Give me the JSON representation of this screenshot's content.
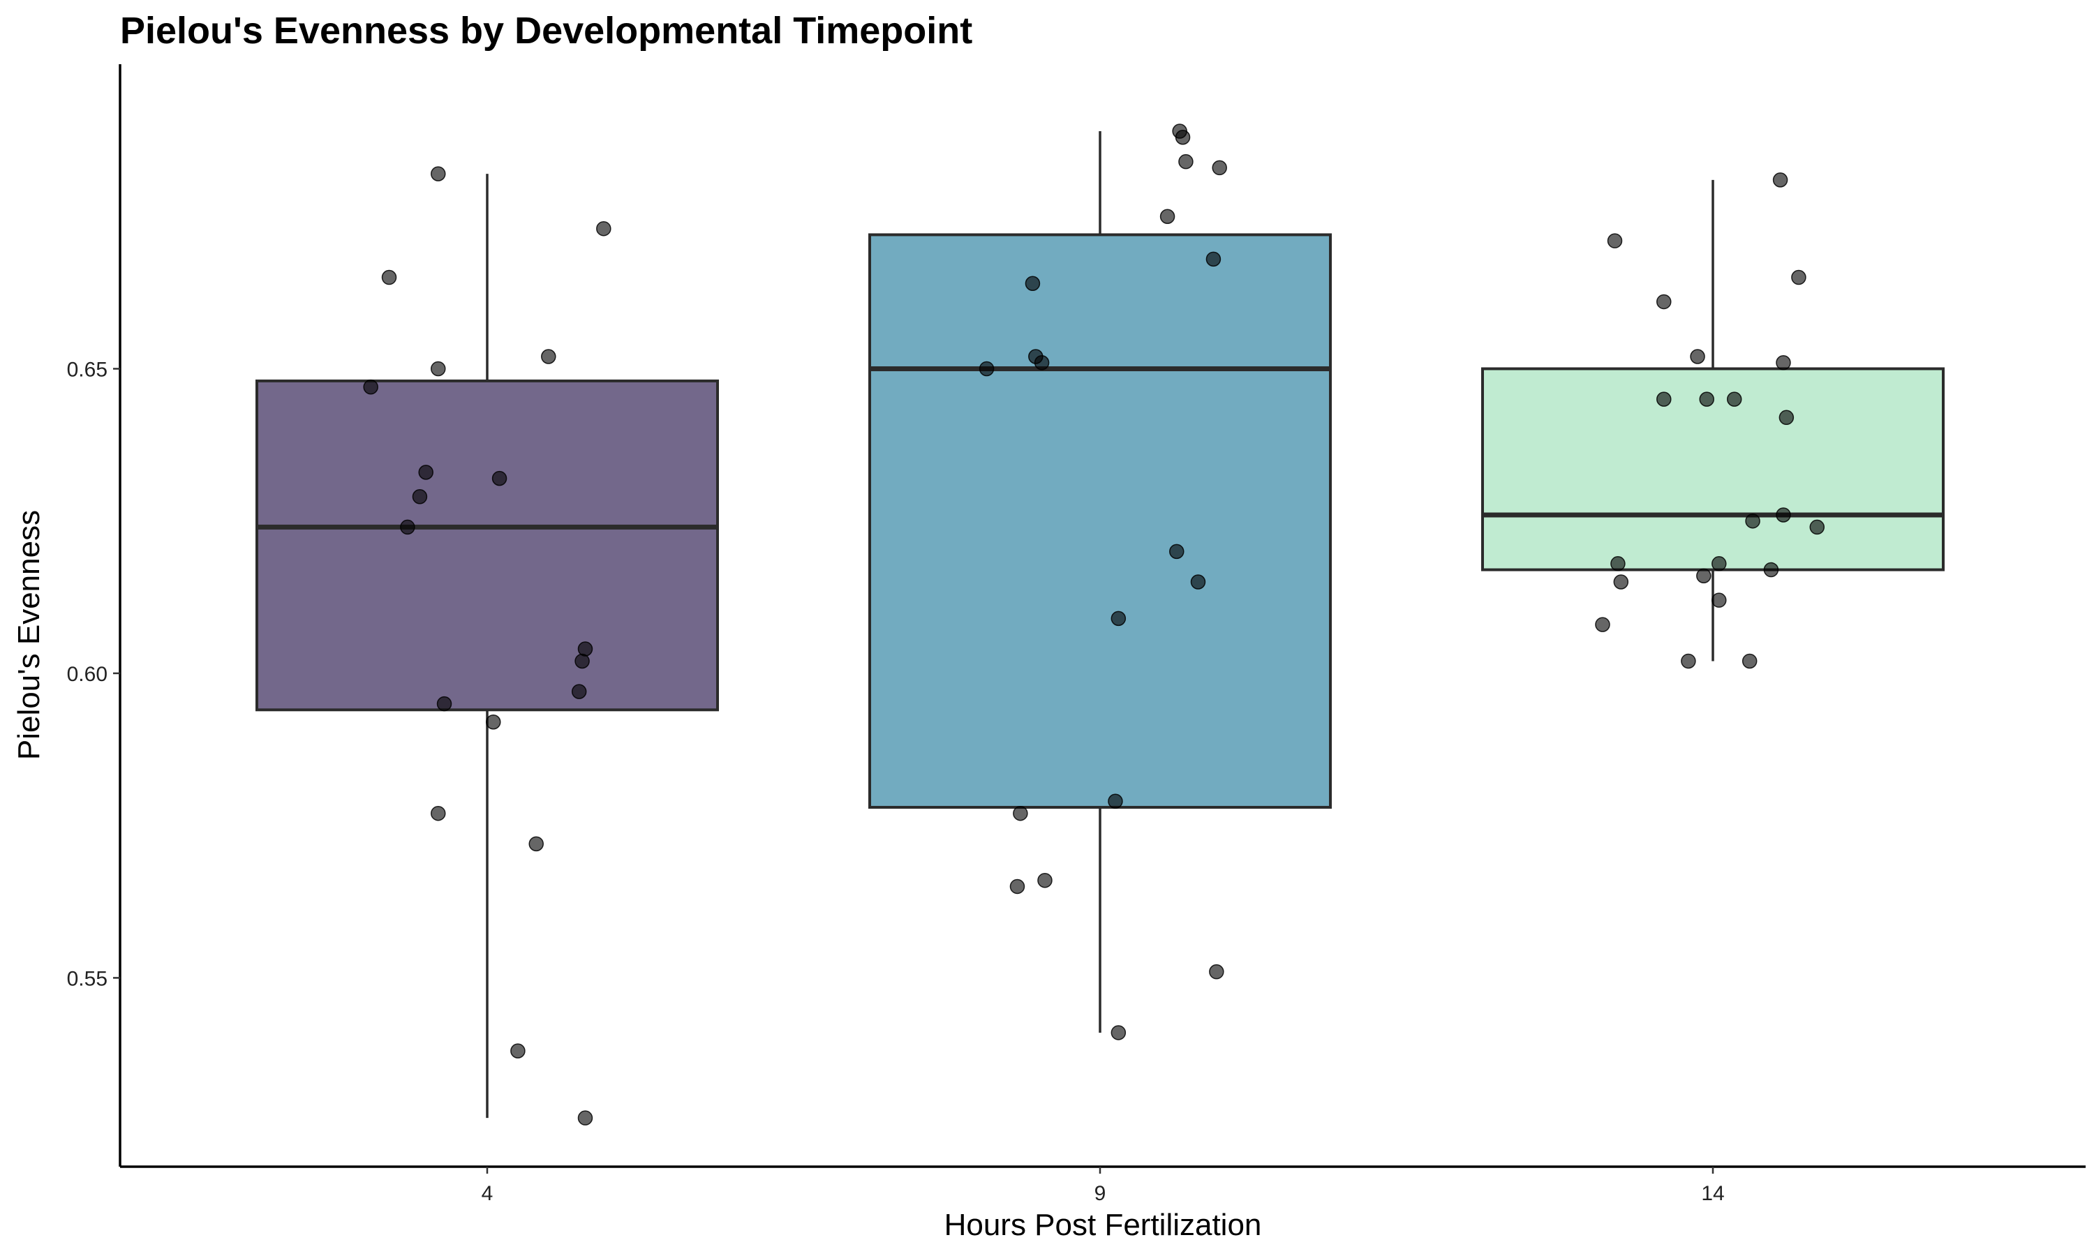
{
  "chart_data": {
    "type": "box",
    "title": "Pielou's Evenness by Developmental Timepoint",
    "xlabel": "Hours Post Fertilization",
    "ylabel": "Pielou's Evenness",
    "ylim": [
      0.519,
      0.7
    ],
    "yticks": [
      0.55,
      0.6,
      0.65
    ],
    "ytick_labels": [
      "0.55",
      "0.60",
      "0.65"
    ],
    "categories": [
      "4",
      "9",
      "14"
    ],
    "grid": false,
    "legend": "none",
    "boxes": [
      {
        "category": "4",
        "color": "#4b3d6a",
        "whisker_low": 0.527,
        "q1": 0.594,
        "median": 0.624,
        "q3": 0.648,
        "whisker_high": 0.682,
        "points": [
          {
            "x": -0.08,
            "y": 0.682
          },
          {
            "x": 0.19,
            "y": 0.673
          },
          {
            "x": -0.16,
            "y": 0.665
          },
          {
            "x": 0.1,
            "y": 0.652
          },
          {
            "x": -0.08,
            "y": 0.65
          },
          {
            "x": -0.19,
            "y": 0.647
          },
          {
            "x": -0.1,
            "y": 0.633
          },
          {
            "x": 0.02,
            "y": 0.632
          },
          {
            "x": -0.11,
            "y": 0.629
          },
          {
            "x": -0.13,
            "y": 0.624
          },
          {
            "x": 0.16,
            "y": 0.604
          },
          {
            "x": 0.155,
            "y": 0.602
          },
          {
            "x": 0.15,
            "y": 0.597
          },
          {
            "x": -0.07,
            "y": 0.595
          },
          {
            "x": 0.01,
            "y": 0.592
          },
          {
            "x": -0.08,
            "y": 0.577
          },
          {
            "x": 0.08,
            "y": 0.572
          },
          {
            "x": 0.05,
            "y": 0.538
          },
          {
            "x": 0.16,
            "y": 0.527
          }
        ]
      },
      {
        "category": "9",
        "color": "#4a93ae",
        "whisker_low": 0.541,
        "q1": 0.578,
        "median": 0.65,
        "q3": 0.672,
        "whisker_high": 0.689,
        "points": [
          {
            "x": 0.13,
            "y": 0.689
          },
          {
            "x": 0.135,
            "y": 0.688
          },
          {
            "x": 0.14,
            "y": 0.684
          },
          {
            "x": 0.195,
            "y": 0.683
          },
          {
            "x": 0.11,
            "y": 0.675
          },
          {
            "x": 0.185,
            "y": 0.668
          },
          {
            "x": -0.11,
            "y": 0.664
          },
          {
            "x": -0.105,
            "y": 0.652
          },
          {
            "x": -0.095,
            "y": 0.651
          },
          {
            "x": -0.185,
            "y": 0.65
          },
          {
            "x": 0.125,
            "y": 0.62
          },
          {
            "x": 0.16,
            "y": 0.615
          },
          {
            "x": 0.03,
            "y": 0.609
          },
          {
            "x": 0.025,
            "y": 0.579
          },
          {
            "x": -0.13,
            "y": 0.577
          },
          {
            "x": -0.09,
            "y": 0.566
          },
          {
            "x": -0.135,
            "y": 0.565
          },
          {
            "x": 0.19,
            "y": 0.551
          },
          {
            "x": 0.03,
            "y": 0.541
          }
        ]
      },
      {
        "category": "14",
        "color": "#aee6c4",
        "whisker_low": 0.602,
        "q1": 0.617,
        "median": 0.626,
        "q3": 0.65,
        "whisker_high": 0.681,
        "points": [
          {
            "x": 0.11,
            "y": 0.681
          },
          {
            "x": -0.16,
            "y": 0.671
          },
          {
            "x": 0.14,
            "y": 0.665
          },
          {
            "x": -0.08,
            "y": 0.661
          },
          {
            "x": -0.025,
            "y": 0.652
          },
          {
            "x": 0.115,
            "y": 0.651
          },
          {
            "x": -0.08,
            "y": 0.645
          },
          {
            "x": -0.01,
            "y": 0.645
          },
          {
            "x": 0.035,
            "y": 0.645
          },
          {
            "x": 0.12,
            "y": 0.642
          },
          {
            "x": 0.115,
            "y": 0.626
          },
          {
            "x": 0.065,
            "y": 0.625
          },
          {
            "x": 0.17,
            "y": 0.624
          },
          {
            "x": -0.155,
            "y": 0.618
          },
          {
            "x": 0.01,
            "y": 0.618
          },
          {
            "x": 0.095,
            "y": 0.617
          },
          {
            "x": -0.015,
            "y": 0.616
          },
          {
            "x": -0.15,
            "y": 0.615
          },
          {
            "x": 0.01,
            "y": 0.612
          },
          {
            "x": -0.18,
            "y": 0.608
          },
          {
            "x": -0.04,
            "y": 0.602
          },
          {
            "x": 0.06,
            "y": 0.602
          }
        ]
      }
    ]
  }
}
